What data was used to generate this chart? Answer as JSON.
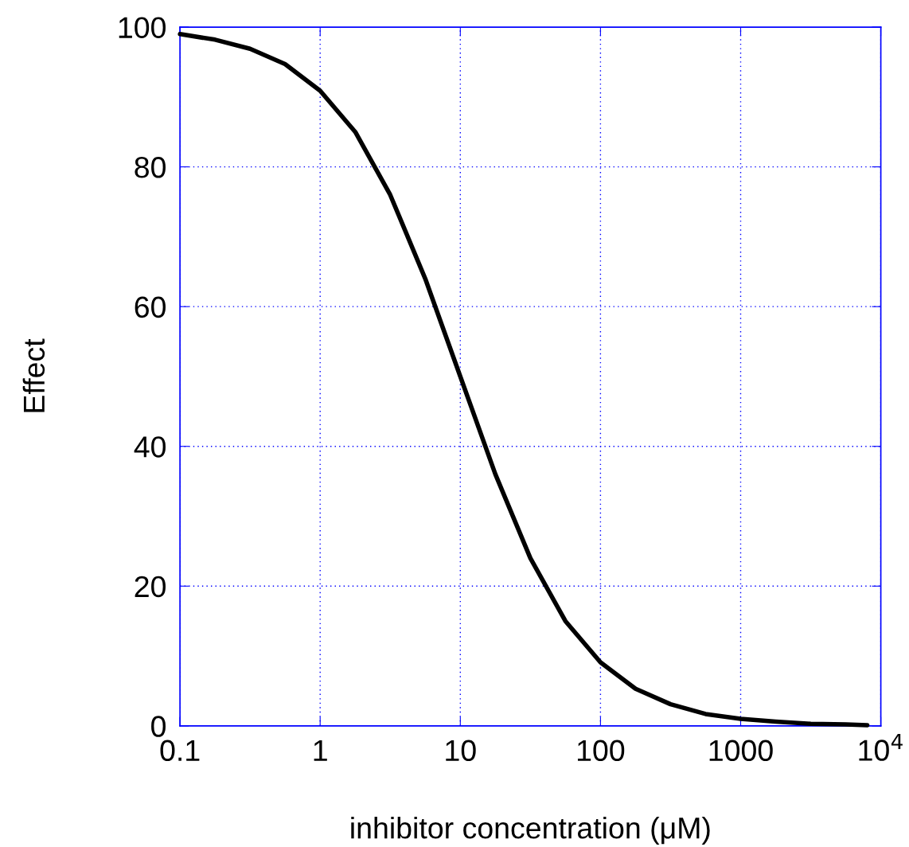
{
  "chart_data": {
    "type": "line",
    "xlabel": "inhibitor concentration (μM)",
    "ylabel": "Effect",
    "log": "x",
    "xlim": [
      0.1,
      10000
    ],
    "xticks": [
      0.1,
      1,
      10,
      100,
      1000,
      {
        "value": 10000,
        "label": "10$^{4}$"
      }
    ],
    "ylim": [
      0,
      100
    ],
    "yticks": [
      0,
      20,
      40,
      60,
      80,
      100
    ],
    "grid": true,
    "marker": "none",
    "line_style": "solid",
    "series": [
      {
        "color": "#000000",
        "x": [
          0.1,
          0.178,
          0.316,
          0.562,
          1,
          1.78,
          3.16,
          5.62,
          10,
          17.8,
          31.6,
          56.2,
          100,
          178,
          316,
          562,
          1000,
          1780,
          3160,
          5620,
          8000
        ],
        "values": [
          99,
          98.2,
          96.9,
          94.7,
          90.9,
          85,
          76,
          64,
          50,
          36,
          24,
          15,
          9.1,
          5.3,
          3.1,
          1.7,
          1,
          0.6,
          0.3,
          0.2,
          0.1
        ]
      }
    ]
  }
}
